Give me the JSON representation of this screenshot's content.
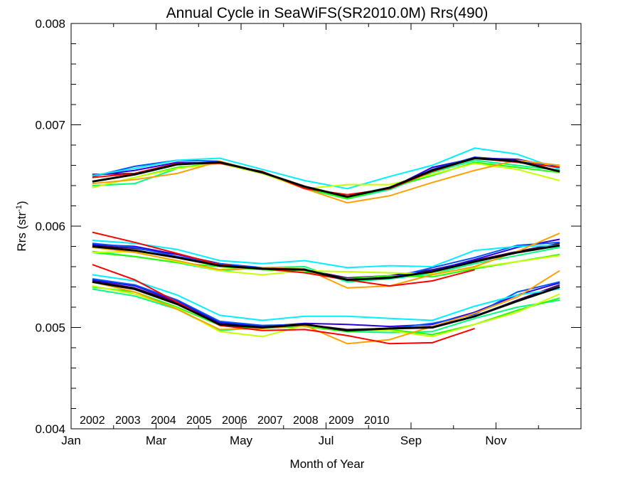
{
  "chart_data": {
    "type": "line",
    "title": "Annual Cycle in SeaWiFS(SR2010.0M) Rrs(490)",
    "xlabel": "Month of Year",
    "ylabel_main": "Rrs (str",
    "ylabel_sup": "-1",
    "ylabel_close": ")",
    "xlim": [
      0,
      12
    ],
    "ylim": [
      0.004,
      0.008
    ],
    "x_ticks": [
      {
        "value": 0,
        "label": "Jan"
      },
      {
        "value": 2,
        "label": "Mar"
      },
      {
        "value": 4,
        "label": "May"
      },
      {
        "value": 6,
        "label": "Jul"
      },
      {
        "value": 8,
        "label": "Sep"
      },
      {
        "value": 10,
        "label": "Nov"
      }
    ],
    "y_ticks": [
      {
        "value": 0.004,
        "label": "0.004"
      },
      {
        "value": 0.005,
        "label": "0.005"
      },
      {
        "value": 0.006,
        "label": "0.006"
      },
      {
        "value": 0.007,
        "label": "0.007"
      },
      {
        "value": 0.008,
        "label": "0.008"
      }
    ],
    "legend_position": "bottom-left",
    "x": [
      0.5,
      1.5,
      2.5,
      3.5,
      4.5,
      5.5,
      6.5,
      7.5,
      8.5,
      9.5,
      10.5,
      11.5
    ],
    "groups": [
      {
        "id": "upper",
        "series": [
          {
            "name": "2002",
            "color": "#4b0066",
            "values": [
              0.00651,
              0.00652,
              0.00662,
              0.00663,
              0.00653,
              0.00638,
              0.00629,
              0.00637,
              0.00655,
              0.00668,
              0.00665,
              0.00654
            ]
          },
          {
            "name": "2003",
            "color": "#2a00e0",
            "values": [
              0.0065,
              0.00655,
              0.00663,
              0.00662,
              0.00652,
              0.00638,
              0.00628,
              0.00637,
              0.00658,
              0.00667,
              0.00666,
              0.00658
            ]
          },
          {
            "name": "2004",
            "color": "#0052ff",
            "values": [
              0.00649,
              0.00659,
              0.00665,
              0.00664,
              0.00653,
              0.00639,
              0.00627,
              0.00637,
              0.00656,
              0.00668,
              0.00664,
              0.0066
            ]
          },
          {
            "name": "2005",
            "color": "#00f0ff",
            "values": [
              0.0065,
              0.00657,
              0.00665,
              0.00667,
              0.00656,
              0.00645,
              0.00637,
              0.00649,
              0.0066,
              0.00677,
              0.00671,
              0.00656
            ]
          },
          {
            "name": "2006",
            "color": "#00ff80",
            "values": [
              0.0064,
              0.00642,
              0.00657,
              0.00663,
              0.00653,
              0.00637,
              0.00627,
              0.00636,
              0.00653,
              0.00665,
              0.0066,
              0.00655
            ]
          },
          {
            "name": "2007",
            "color": "#20ff00",
            "values": [
              0.00638,
              0.00648,
              0.00658,
              0.00662,
              0.00652,
              0.00638,
              0.00627,
              0.00638,
              0.0065,
              0.00663,
              0.00658,
              0.00653
            ]
          },
          {
            "name": "2008",
            "color": "#c8ff00",
            "values": [
              0.00638,
              0.00648,
              0.00657,
              0.00662,
              0.00652,
              0.00637,
              0.00641,
              0.00641,
              0.00651,
              0.00662,
              0.00656,
              0.00645
            ]
          },
          {
            "name": "2009",
            "color": "#ffa000",
            "values": [
              0.00642,
              0.00646,
              0.00652,
              0.00664,
              0.00653,
              0.00637,
              0.00623,
              0.0063,
              0.00643,
              0.00655,
              0.00665,
              0.0066
            ]
          },
          {
            "name": "2010",
            "color": "#ff0000",
            "values": [
              0.00648,
              0.00652,
              0.00662,
              0.00662,
              0.00654,
              0.00637,
              0.00631,
              0.00637,
              0.00654,
              0.00667,
              0.00663,
              0.00658
            ]
          },
          {
            "name": "",
            "color": "#000000",
            "width": 3,
            "values": [
              0.00644,
              0.00651,
              0.00661,
              0.00663,
              0.00653,
              0.00639,
              0.00629,
              0.00638,
              0.00655,
              0.00667,
              0.00664,
              0.00654
            ]
          }
        ]
      },
      {
        "id": "middle",
        "series": [
          {
            "name": "2002",
            "color": "#4b0066",
            "values": [
              0.00581,
              0.00578,
              0.00572,
              0.00563,
              0.00558,
              0.00557,
              0.00549,
              0.00551,
              0.00557,
              0.00566,
              0.00575,
              0.00583
            ]
          },
          {
            "name": "2003",
            "color": "#2a00e0",
            "values": [
              0.00582,
              0.0058,
              0.00572,
              0.00563,
              0.00558,
              0.00556,
              0.00548,
              0.0055,
              0.00556,
              0.00567,
              0.00579,
              0.00587
            ]
          },
          {
            "name": "2004",
            "color": "#0052ff",
            "values": [
              0.00583,
              0.00579,
              0.0057,
              0.00563,
              0.00559,
              0.00557,
              0.00546,
              0.00549,
              0.00559,
              0.00569,
              0.00581,
              0.00584
            ]
          },
          {
            "name": "2005",
            "color": "#00f0ff",
            "values": [
              0.00586,
              0.00583,
              0.00577,
              0.00566,
              0.00563,
              0.00566,
              0.00559,
              0.00561,
              0.0056,
              0.00576,
              0.0058,
              0.00581
            ]
          },
          {
            "name": "2006",
            "color": "#00ff80",
            "values": [
              0.00575,
              0.0057,
              0.00564,
              0.00556,
              0.00559,
              0.0056,
              0.00545,
              0.00548,
              0.00553,
              0.00563,
              0.00571,
              0.00579
            ]
          },
          {
            "name": "2007",
            "color": "#20ff00",
            "values": [
              0.00574,
              0.0057,
              0.00564,
              0.0056,
              0.00557,
              0.00555,
              0.00548,
              0.00551,
              0.0055,
              0.00558,
              0.00565,
              0.00572
            ]
          },
          {
            "name": "2008",
            "color": "#c8ff00",
            "values": [
              0.00574,
              0.00575,
              0.00565,
              0.00556,
              0.00552,
              0.00556,
              0.00555,
              0.00554,
              0.00553,
              0.00559,
              0.00565,
              0.00571
            ]
          },
          {
            "name": "2009",
            "color": "#ffa000",
            "values": [
              0.00579,
              0.00574,
              0.00566,
              0.00557,
              0.00559,
              0.00558,
              0.00539,
              0.00541,
              0.00552,
              0.0056,
              0.00575,
              0.00593
            ]
          },
          {
            "name": "2010",
            "color": "#ff0000",
            "values": [
              0.00594,
              0.00584,
              0.00573,
              0.00562,
              0.00558,
              0.00554,
              0.00547,
              0.00541,
              0.00546,
              0.00557
            ]
          },
          {
            "name": "",
            "color": "#000000",
            "width": 3,
            "values": [
              0.0058,
              0.00576,
              0.00569,
              0.00561,
              0.00558,
              0.00557,
              0.00547,
              0.00549,
              0.00555,
              0.00565,
              0.00574,
              0.00581
            ]
          }
        ]
      },
      {
        "id": "lower",
        "series": [
          {
            "name": "2002",
            "color": "#4b0066",
            "values": [
              0.00546,
              0.00539,
              0.00525,
              0.00504,
              0.005,
              0.00503,
              0.00498,
              0.00499,
              0.00501,
              0.00511,
              0.00527,
              0.00542
            ]
          },
          {
            "name": "2003",
            "color": "#2a00e0",
            "values": [
              0.00547,
              0.00541,
              0.00526,
              0.00505,
              0.00501,
              0.00504,
              0.00503,
              0.00501,
              0.00503,
              0.00515,
              0.00532,
              0.00544
            ]
          },
          {
            "name": "2004",
            "color": "#0052ff",
            "values": [
              0.00548,
              0.00542,
              0.00527,
              0.00506,
              0.00502,
              0.00503,
              0.00497,
              0.00499,
              0.00504,
              0.00513,
              0.00535,
              0.00545
            ]
          },
          {
            "name": "2005",
            "color": "#00f0ff",
            "values": [
              0.00552,
              0.00546,
              0.00532,
              0.00512,
              0.00507,
              0.00511,
              0.00511,
              0.00509,
              0.00507,
              0.00521,
              0.00532,
              0.00538
            ]
          },
          {
            "name": "2006",
            "color": "#00ff80",
            "values": [
              0.00538,
              0.00531,
              0.00518,
              0.00497,
              0.005,
              0.00502,
              0.00496,
              0.00495,
              0.00496,
              0.00509,
              0.0052,
              0.00527
            ]
          },
          {
            "name": "2007",
            "color": "#20ff00",
            "values": [
              0.0054,
              0.00535,
              0.0052,
              0.00502,
              0.00499,
              0.00501,
              0.00496,
              0.00498,
              0.00493,
              0.00503,
              0.00517,
              0.00529
            ]
          },
          {
            "name": "2008",
            "color": "#c8ff00",
            "values": [
              0.00541,
              0.00533,
              0.00519,
              0.00496,
              0.00491,
              0.00502,
              0.00497,
              0.00497,
              0.00491,
              0.00503,
              0.00515,
              0.00533
            ]
          },
          {
            "name": "2009",
            "color": "#ffa000",
            "values": [
              0.00545,
              0.00535,
              0.00518,
              0.00498,
              0.00499,
              0.00502,
              0.00484,
              0.00488,
              0.00501,
              0.00514,
              0.0053,
              0.00556
            ]
          },
          {
            "name": "2010",
            "color": "#ff0000",
            "values": [
              0.00562,
              0.00547,
              0.00525,
              0.00502,
              0.00497,
              0.00498,
              0.00492,
              0.00484,
              0.00485,
              0.00499
            ]
          },
          {
            "name": "",
            "color": "#000000",
            "width": 3,
            "values": [
              0.00545,
              0.00538,
              0.00523,
              0.00503,
              0.005,
              0.00503,
              0.00497,
              0.00499,
              0.005,
              0.00511,
              0.00526,
              0.0054
            ]
          }
        ]
      }
    ],
    "legend": [
      {
        "label": "2002",
        "color": "#4b0066"
      },
      {
        "label": "2003",
        "color": "#2a00e0"
      },
      {
        "label": "2004",
        "color": "#0052ff"
      },
      {
        "label": "2005",
        "color": "#00f0ff"
      },
      {
        "label": "2006",
        "color": "#00ff80"
      },
      {
        "label": "2007",
        "color": "#20ff00"
      },
      {
        "label": "2008",
        "color": "#c8ff00"
      },
      {
        "label": "2009",
        "color": "#ffa000"
      },
      {
        "label": "2010",
        "color": "#ff0000"
      }
    ]
  }
}
